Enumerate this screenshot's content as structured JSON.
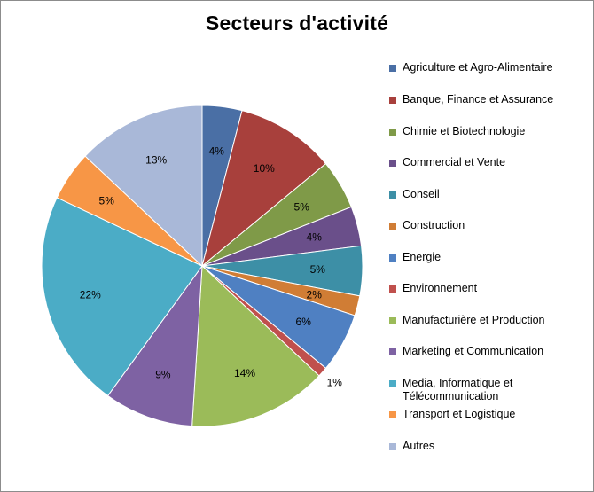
{
  "chart_data": {
    "type": "pie",
    "title": "Secteurs d'activité",
    "legend": "right",
    "categories": [
      "Agriculture et Agro-Alimentaire",
      "Banque, Finance et Assurance",
      "Chimie et Biotechnologie",
      "Commercial et Vente",
      "Conseil",
      "Construction",
      "Energie",
      "Environnement",
      "Manufacturière et Production",
      "Marketing et Communication",
      "Media, Informatique et Télécommunication",
      "Transport et Logistique",
      "Autres"
    ],
    "values": [
      4,
      10,
      5,
      4,
      5,
      2,
      6,
      1,
      14,
      9,
      22,
      5,
      13
    ],
    "data_labels": [
      "4%",
      "10%",
      "5%",
      "4%",
      "5%",
      "2%",
      "6%",
      "1%",
      "14%",
      "9%",
      "22%",
      "5%",
      "13%"
    ],
    "colors": [
      "#4A6FA5",
      "#A8403C",
      "#7F9A48",
      "#6A4F8A",
      "#3D8FA6",
      "#D07D35",
      "#4F80C2",
      "#C0504D",
      "#9BBB59",
      "#7E62A3",
      "#4BACC6",
      "#F79646",
      "#A9B8D8"
    ]
  }
}
